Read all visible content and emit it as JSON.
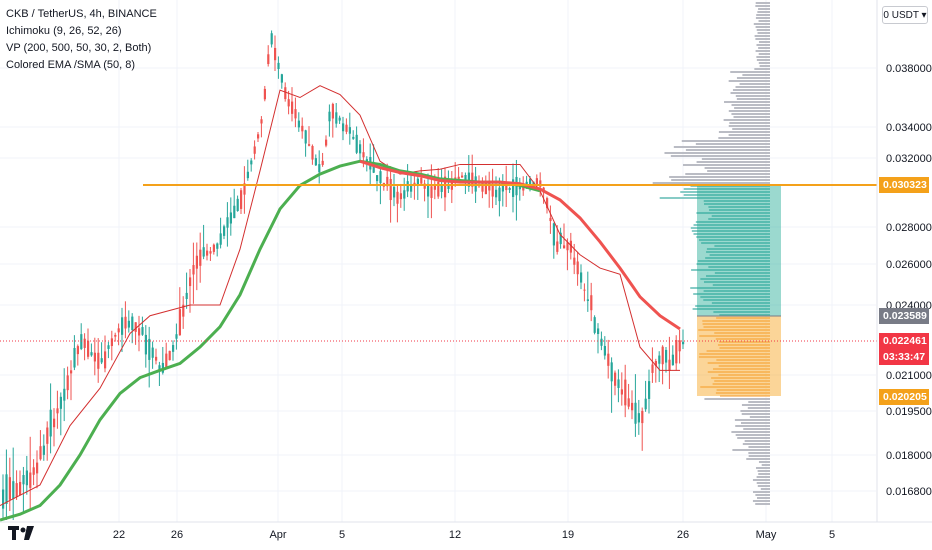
{
  "chart_data": {
    "type": "candlestick",
    "title": "CKB / TetherUS, 4h, BINANCE",
    "indicators": [
      "Ichimoku (9, 26, 52, 26)",
      "VP (200, 500, 50, 30, 2, Both)",
      "Colored EMA /SMA (50, 8)"
    ],
    "currency": "USDT",
    "y_axis_ticks": [
      "0.038000",
      "0.034000",
      "0.032000",
      "0.028000",
      "0.026000",
      "0.024000",
      "0.021000",
      "0.019500",
      "0.018000",
      "0.016800"
    ],
    "x_axis_ticks": [
      "22",
      "26",
      "Apr",
      "5",
      "12",
      "19",
      "26",
      "May",
      "5"
    ],
    "price_tags": [
      {
        "label": "0.030323",
        "color": "#f4a11a"
      },
      {
        "label": "0.023589",
        "color": "#787b86"
      },
      {
        "label": "0.022461",
        "color": "#f23645"
      },
      {
        "label": "03:33:47",
        "color": "#f23645"
      },
      {
        "label": "0.020205",
        "color": "#f4a11a"
      }
    ],
    "horizontal_level": 0.030323,
    "current_price": 0.022461,
    "position": {
      "entry": 0.023589,
      "target": 0.030323,
      "stop": 0.020205
    },
    "ema_series": [
      [
        0,
        0.0158
      ],
      [
        20,
        0.016
      ],
      [
        40,
        0.0163
      ],
      [
        60,
        0.017
      ],
      [
        80,
        0.018
      ],
      [
        100,
        0.0192
      ],
      [
        120,
        0.0203
      ],
      [
        140,
        0.0209
      ],
      [
        160,
        0.0212
      ],
      [
        180,
        0.0215
      ],
      [
        200,
        0.0222
      ],
      [
        220,
        0.0231
      ],
      [
        240,
        0.0245
      ],
      [
        260,
        0.0268
      ],
      [
        280,
        0.029
      ],
      [
        300,
        0.0303
      ],
      [
        320,
        0.031
      ],
      [
        340,
        0.0315
      ],
      [
        360,
        0.0318
      ],
      [
        380,
        0.0316
      ],
      [
        400,
        0.0312
      ],
      [
        420,
        0.031
      ],
      [
        440,
        0.0307
      ],
      [
        460,
        0.0306
      ],
      [
        480,
        0.0305
      ],
      [
        500,
        0.0305
      ],
      [
        520,
        0.0303
      ],
      [
        540,
        0.03
      ]
    ],
    "sma_series": [
      [
        360,
        0.0318
      ],
      [
        380,
        0.0314
      ],
      [
        400,
        0.0311
      ],
      [
        420,
        0.0309
      ],
      [
        440,
        0.0306
      ],
      [
        460,
        0.0305
      ],
      [
        480,
        0.0305
      ],
      [
        500,
        0.0305
      ],
      [
        520,
        0.0304
      ],
      [
        540,
        0.0301
      ],
      [
        560,
        0.0295
      ],
      [
        580,
        0.0285
      ],
      [
        600,
        0.0272
      ],
      [
        620,
        0.0258
      ],
      [
        640,
        0.0244
      ],
      [
        660,
        0.0236
      ],
      [
        680,
        0.023
      ]
    ],
    "ichimoku_base": [
      [
        0,
        0.0163
      ],
      [
        40,
        0.017
      ],
      [
        70,
        0.019
      ],
      [
        100,
        0.0205
      ],
      [
        130,
        0.0228
      ],
      [
        150,
        0.0236
      ],
      [
        170,
        0.0238
      ],
      [
        190,
        0.024
      ],
      [
        220,
        0.024
      ],
      [
        240,
        0.0268
      ],
      [
        260,
        0.0312
      ],
      [
        280,
        0.0365
      ],
      [
        300,
        0.036
      ],
      [
        320,
        0.0368
      ],
      [
        340,
        0.0362
      ],
      [
        360,
        0.0348
      ],
      [
        380,
        0.0318
      ],
      [
        400,
        0.031
      ],
      [
        420,
        0.0312
      ],
      [
        440,
        0.0313
      ],
      [
        460,
        0.0316
      ],
      [
        480,
        0.0316
      ],
      [
        500,
        0.0316
      ],
      [
        520,
        0.0316
      ],
      [
        540,
        0.03
      ],
      [
        560,
        0.0276
      ],
      [
        580,
        0.0265
      ],
      [
        600,
        0.0258
      ],
      [
        620,
        0.0255
      ],
      [
        640,
        0.0222
      ],
      [
        660,
        0.0212
      ],
      [
        680,
        0.0212
      ]
    ]
  },
  "logo_text": "TV"
}
